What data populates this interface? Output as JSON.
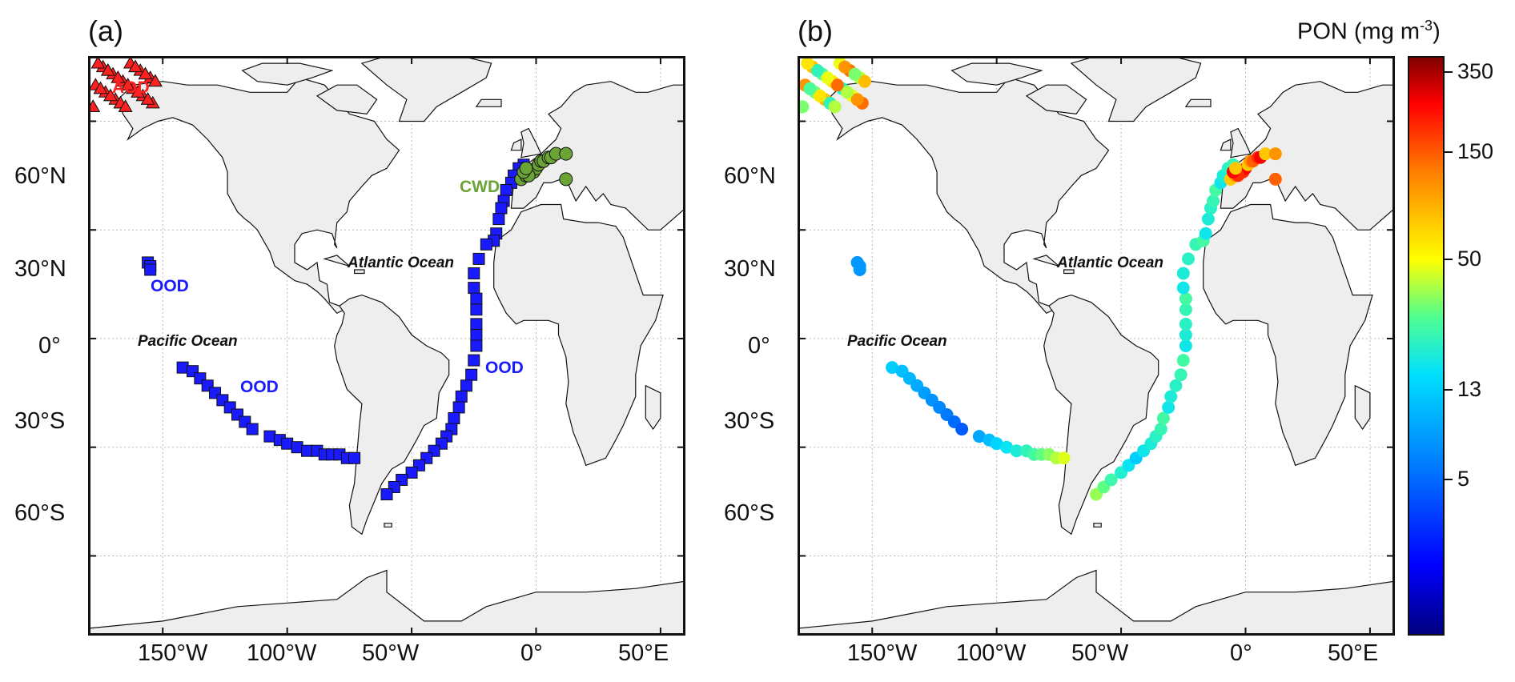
{
  "panels": [
    {
      "label": "(a)",
      "ocean_labels": [
        "Atlantic Ocean",
        "Pacific Ocean"
      ],
      "groups": [
        {
          "name": "AOD",
          "color": "#ff2020",
          "marker": "triangle"
        },
        {
          "name": "CWD",
          "color": "#6aa336",
          "marker": "circle"
        },
        {
          "name": "OOD",
          "color": "#1a1aff",
          "marker": "square"
        }
      ]
    },
    {
      "label": "(b)",
      "ocean_labels": [
        "Atlantic Ocean",
        "Pacific Ocean"
      ]
    }
  ],
  "axes": {
    "lon_labels": [
      "150°W",
      "100°W",
      "50°W",
      "0°",
      "50°E"
    ],
    "lat_labels": [
      "60°N",
      "30°N",
      "0°",
      "30°S",
      "60°S"
    ]
  },
  "colorbar": {
    "title": "PON (mg m",
    "title_exponent": "-3",
    "title_close": ")",
    "tick_labels": [
      "350",
      "150",
      "50",
      "13",
      "5"
    ],
    "colors": [
      "#000080",
      "#0000ff",
      "#0080ff",
      "#00e0ff",
      "#50ff90",
      "#ffff00",
      "#ff8000",
      "#ff0000",
      "#800000"
    ]
  },
  "colors": {
    "land": "#eeeeee",
    "coast": "#111111",
    "grid": "#bbbbbb",
    "aod": "#ff2020",
    "cwd": "#6aa336",
    "ood": "#1a1aff"
  }
}
